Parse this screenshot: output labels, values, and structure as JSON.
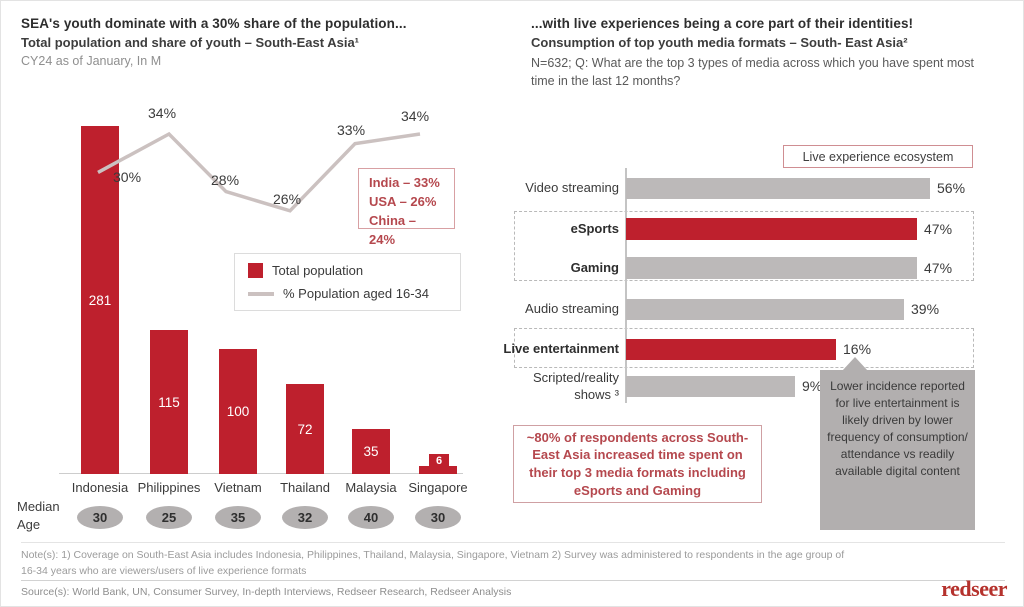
{
  "colors": {
    "accent_red": "#BE202D",
    "bar_gray": "#BCB9B9",
    "line_gray": "#CBC1C0",
    "median_ellipse_gray": "#B3B0B0",
    "callout_gray": "#B2AFAF",
    "red_text": "#B5484E",
    "logo_red": "#B5322D"
  },
  "left_chart": {
    "title": "SEA's youth dominate with a 30% share of the population...",
    "subtitle": "Total population and share of youth – South-East Asia¹",
    "caption": "CY24 as of January, In M",
    "legend": {
      "bar": "Total population",
      "line": "% Population aged 16-34"
    },
    "benchmark_lines": [
      "India – 33%",
      "USA – 26%",
      "China – 24%"
    ],
    "median_label_line1": "Median",
    "median_label_line2": "Age"
  },
  "right_chart": {
    "title": "...with live experiences being a core part of their identities!",
    "subtitle": "Consumption of top youth media formats – South- East Asia²",
    "question": "N=632; Q: What are the top 3 types of media across which you have spent most time in the last 12 months?",
    "ecosystem_tag": "Live experience ecosystem",
    "callout": "Lower incidence reported for live entertainment is likely driven by lower frequency of consumption/ attendance vs readily available digital content",
    "highlight_box": "~80% of respondents across South-East Asia increased time spent on their top 3 media formats including eSports and Gaming"
  },
  "chart_data": [
    {
      "type": "bar",
      "subtype": "bar-line-combo",
      "title": "Total population and share of youth – South-East Asia, CY24 as of January, In M",
      "categories": [
        "Indonesia",
        "Philippines",
        "Vietnam",
        "Thailand",
        "Malaysia",
        "Singapore"
      ],
      "series": [
        {
          "name": "Total population",
          "type": "bar",
          "unit": "M",
          "values": [
            281,
            115,
            100,
            72,
            35,
            6
          ]
        },
        {
          "name": "% Population aged 16-34",
          "type": "line",
          "unit": "%",
          "values": [
            30,
            34,
            28,
            26,
            33,
            34
          ]
        }
      ],
      "median_age": [
        30,
        25,
        35,
        32,
        40,
        30
      ],
      "benchmarks": [
        {
          "name": "India",
          "value": 33
        },
        {
          "name": "USA",
          "value": 26
        },
        {
          "name": "China",
          "value": 24
        }
      ],
      "grid": false,
      "legend_position": "center-right"
    },
    {
      "type": "bar",
      "orientation": "horizontal",
      "title": "Consumption of top youth media formats – South-East Asia, N=632",
      "categories": [
        "Video streaming",
        "eSports",
        "Gaming",
        "Audio streaming",
        "Live entertainment",
        "Scripted/reality shows ³"
      ],
      "values": [
        56,
        47,
        47,
        39,
        16,
        9
      ],
      "unit": "%",
      "highlighted_categories": [
        "eSports",
        "Live entertainment"
      ],
      "grid": false,
      "legend_position": "none"
    }
  ],
  "footer": {
    "notes": "Note(s): 1) Coverage on South-East Asia includes Indonesia, Philippines, Thailand, Malaysia, Singapore, Vietnam 2) Survey was administered to respondents in the age group of 16-34 years who are viewers/users of live experience formats",
    "source": "Source(s): World Bank, UN, Consumer Survey, In-depth Interviews, Redseer Research, Redseer Analysis",
    "logo": "redseer"
  }
}
